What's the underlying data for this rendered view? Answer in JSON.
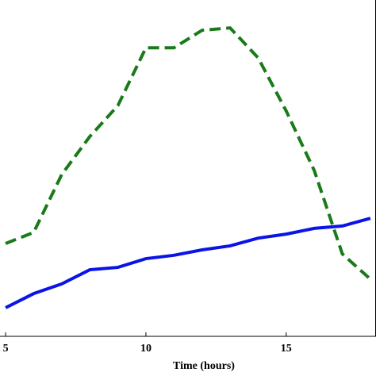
{
  "chart_data": {
    "type": "line",
    "xlabel": "Time (hours)",
    "x": [
      5,
      6,
      7,
      8,
      9,
      10,
      11,
      12,
      13,
      14,
      15,
      16,
      17,
      18
    ],
    "series": [
      {
        "color": "#1a7a1a",
        "linestyle": "dashed",
        "values": [
          27.6,
          30.9,
          48.1,
          59.4,
          68.6,
          85.8,
          85.8,
          91.0,
          91.7,
          82.8,
          67.0,
          49.3,
          24.5,
          17.0
        ]
      },
      {
        "color": "#0a14e6",
        "linestyle": "solid",
        "values": [
          8.5,
          12.7,
          15.6,
          19.8,
          20.5,
          23.1,
          24.1,
          25.7,
          26.9,
          29.2,
          30.4,
          32.1,
          32.8,
          35.1
        ]
      }
    ],
    "xlim": [
      4.8,
      18.2
    ],
    "xticks": [
      5,
      10,
      15
    ],
    "ylim": [
      0,
      100
    ]
  }
}
